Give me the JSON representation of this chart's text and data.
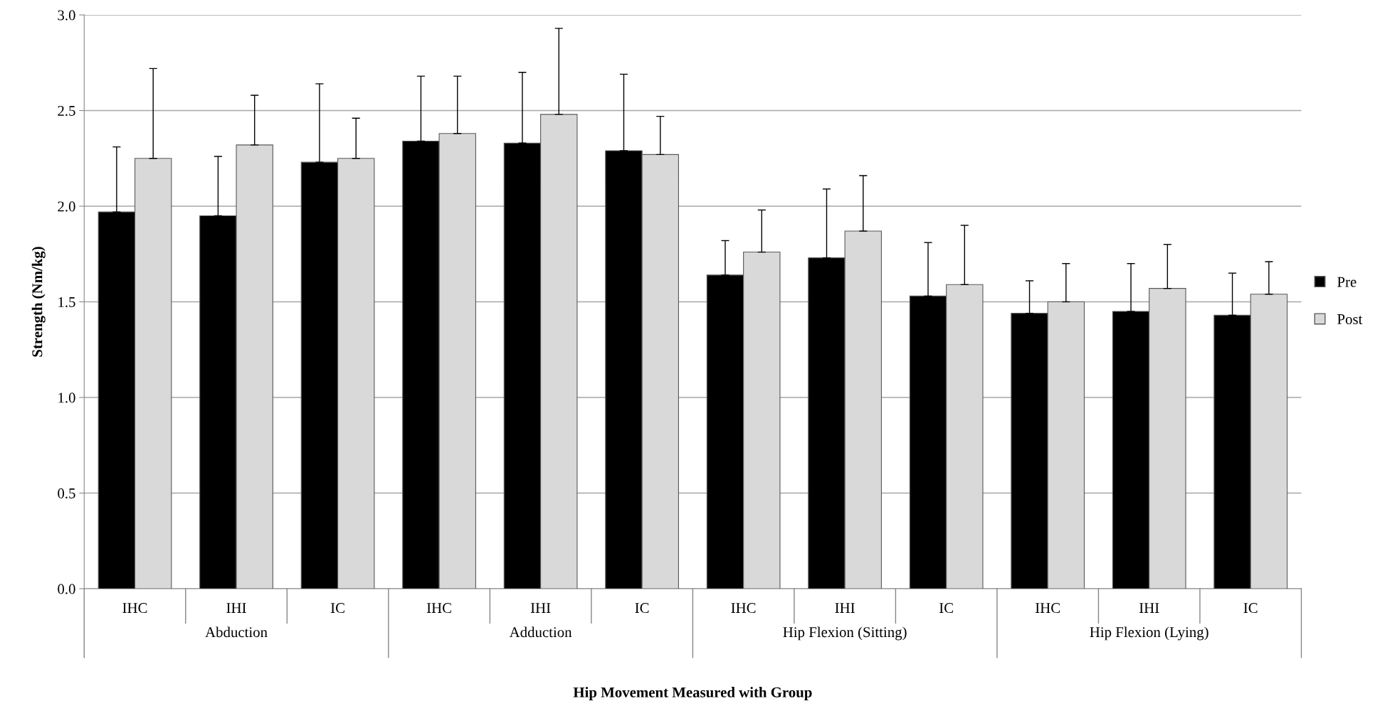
{
  "chart_data": {
    "type": "bar",
    "xlabel": "Hip Movement Measured with Group",
    "ylabel": "Strength (Nm/kg)",
    "categories": [
      "IHC",
      "IHI",
      "IC",
      "IHC",
      "IHI",
      "IC",
      "IHC",
      "IHI",
      "IC",
      "IHC",
      "IHI",
      "IC"
    ],
    "annotations": [
      "Abduction",
      "Adduction",
      "Hip Flexion (Sitting)",
      "Hip Flexion (Lying)"
    ],
    "series": [
      {
        "name": "Pre",
        "color": "#000000",
        "values": [
          1.97,
          1.95,
          2.23,
          2.34,
          2.33,
          2.29,
          1.64,
          1.73,
          1.53,
          1.44,
          1.45,
          1.43
        ],
        "errors": [
          [
            1.97,
            2.31
          ],
          [
            1.95,
            2.26
          ],
          [
            2.23,
            2.64
          ],
          [
            2.34,
            2.68
          ],
          [
            2.33,
            2.7
          ],
          [
            2.29,
            2.69
          ],
          [
            1.64,
            1.82
          ],
          [
            1.73,
            2.09
          ],
          [
            1.53,
            1.81
          ],
          [
            1.44,
            1.61
          ],
          [
            1.45,
            1.7
          ],
          [
            1.43,
            1.65
          ]
        ]
      },
      {
        "name": "Post",
        "color": "#d9d9d9",
        "values": [
          2.25,
          2.32,
          2.25,
          2.38,
          2.48,
          2.27,
          1.76,
          1.87,
          1.59,
          1.5,
          1.57,
          1.54
        ],
        "errors": [
          [
            2.25,
            2.72
          ],
          [
            2.32,
            2.58
          ],
          [
            2.25,
            2.46
          ],
          [
            2.38,
            2.68
          ],
          [
            2.48,
            2.93
          ],
          [
            2.27,
            2.47
          ],
          [
            1.76,
            1.98
          ],
          [
            1.87,
            2.16
          ],
          [
            1.59,
            1.9
          ],
          [
            1.5,
            1.7
          ],
          [
            1.57,
            1.8
          ],
          [
            1.54,
            1.71
          ]
        ]
      }
    ],
    "ylim": [
      0,
      3
    ],
    "yticks": [
      {
        "value": 0,
        "label": "0.0"
      },
      {
        "value": 0.5,
        "label": "0.5"
      },
      {
        "value": 1,
        "label": "1.0"
      },
      {
        "value": 1.5,
        "label": "1.5"
      },
      {
        "value": 2,
        "label": "2.0"
      },
      {
        "value": 2.5,
        "label": "2.5"
      },
      {
        "value": 3,
        "label": "3.0"
      }
    ],
    "grid": "y",
    "legend": "right"
  }
}
